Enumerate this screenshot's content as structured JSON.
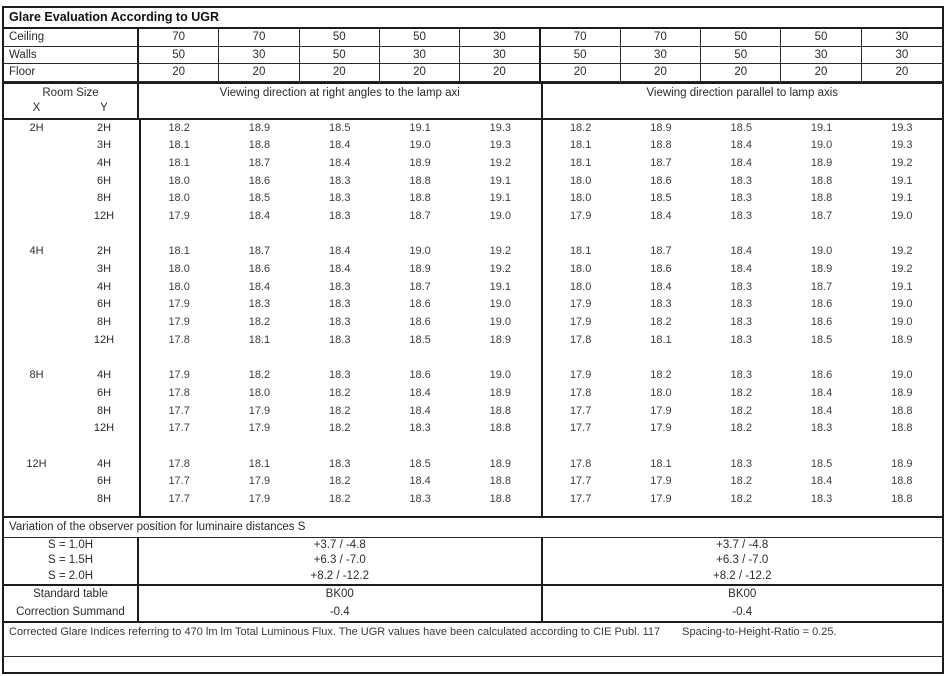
{
  "title": "Glare Evaluation According to UGR",
  "surface_rows": [
    {
      "label": "Ceiling",
      "v": [
        "70",
        "70",
        "50",
        "50",
        "30",
        "70",
        "70",
        "50",
        "50",
        "30"
      ]
    },
    {
      "label": "Walls",
      "v": [
        "50",
        "30",
        "50",
        "30",
        "30",
        "50",
        "30",
        "50",
        "30",
        "30"
      ]
    },
    {
      "label": "Floor",
      "v": [
        "20",
        "20",
        "20",
        "20",
        "20",
        "20",
        "20",
        "20",
        "20",
        "20"
      ]
    }
  ],
  "room_size": {
    "title": "Room Size",
    "x": "X",
    "y": "Y"
  },
  "viewing": {
    "left": "Viewing direction at right angles to the lamp axi",
    "right": "Viewing direction parallel to lamp axis"
  },
  "ugr_rows": [
    {
      "x": "2H",
      "y": "2H",
      "v": [
        "18.2",
        "18.9",
        "18.5",
        "19.1",
        "19.3",
        "18.2",
        "18.9",
        "18.5",
        "19.1",
        "19.3"
      ]
    },
    {
      "x": "",
      "y": "3H",
      "v": [
        "18.1",
        "18.8",
        "18.4",
        "19.0",
        "19.3",
        "18.1",
        "18.8",
        "18.4",
        "19.0",
        "19.3"
      ]
    },
    {
      "x": "",
      "y": "4H",
      "v": [
        "18.1",
        "18.7",
        "18.4",
        "18.9",
        "19.2",
        "18.1",
        "18.7",
        "18.4",
        "18.9",
        "19.2"
      ]
    },
    {
      "x": "",
      "y": "6H",
      "v": [
        "18.0",
        "18.6",
        "18.3",
        "18.8",
        "19.1",
        "18.0",
        "18.6",
        "18.3",
        "18.8",
        "19.1"
      ]
    },
    {
      "x": "",
      "y": "8H",
      "v": [
        "18.0",
        "18.5",
        "18.3",
        "18.8",
        "19.1",
        "18.0",
        "18.5",
        "18.3",
        "18.8",
        "19.1"
      ]
    },
    {
      "x": "",
      "y": "12H",
      "v": [
        "17.9",
        "18.4",
        "18.3",
        "18.7",
        "19.0",
        "17.9",
        "18.4",
        "18.3",
        "18.7",
        "19.0"
      ]
    },
    {
      "x": "",
      "y": "",
      "v": [
        "",
        "",
        "",
        "",
        "",
        "",
        "",
        "",
        "",
        ""
      ]
    },
    {
      "x": "4H",
      "y": "2H",
      "v": [
        "18.1",
        "18.7",
        "18.4",
        "19.0",
        "19.2",
        "18.1",
        "18.7",
        "18.4",
        "19.0",
        "19.2"
      ]
    },
    {
      "x": "",
      "y": "3H",
      "v": [
        "18.0",
        "18.6",
        "18.4",
        "18.9",
        "19.2",
        "18.0",
        "18.6",
        "18.4",
        "18.9",
        "19.2"
      ]
    },
    {
      "x": "",
      "y": "4H",
      "v": [
        "18.0",
        "18.4",
        "18.3",
        "18.7",
        "19.1",
        "18.0",
        "18.4",
        "18.3",
        "18.7",
        "19.1"
      ]
    },
    {
      "x": "",
      "y": "6H",
      "v": [
        "17.9",
        "18.3",
        "18.3",
        "18.6",
        "19.0",
        "17.9",
        "18.3",
        "18.3",
        "18.6",
        "19.0"
      ]
    },
    {
      "x": "",
      "y": "8H",
      "v": [
        "17.9",
        "18.2",
        "18.3",
        "18.6",
        "19.0",
        "17.9",
        "18.2",
        "18.3",
        "18.6",
        "19.0"
      ]
    },
    {
      "x": "",
      "y": "12H",
      "v": [
        "17.8",
        "18.1",
        "18.3",
        "18.5",
        "18.9",
        "17.8",
        "18.1",
        "18.3",
        "18.5",
        "18.9"
      ]
    },
    {
      "x": "",
      "y": "",
      "v": [
        "",
        "",
        "",
        "",
        "",
        "",
        "",
        "",
        "",
        ""
      ]
    },
    {
      "x": "8H",
      "y": "4H",
      "v": [
        "17.9",
        "18.2",
        "18.3",
        "18.6",
        "19.0",
        "17.9",
        "18.2",
        "18.3",
        "18.6",
        "19.0"
      ]
    },
    {
      "x": "",
      "y": "6H",
      "v": [
        "17.8",
        "18.0",
        "18.2",
        "18.4",
        "18.9",
        "17.8",
        "18.0",
        "18.2",
        "18.4",
        "18.9"
      ]
    },
    {
      "x": "",
      "y": "8H",
      "v": [
        "17.7",
        "17.9",
        "18.2",
        "18.4",
        "18.8",
        "17.7",
        "17.9",
        "18.2",
        "18.4",
        "18.8"
      ]
    },
    {
      "x": "",
      "y": "12H",
      "v": [
        "17.7",
        "17.9",
        "18.2",
        "18.3",
        "18.8",
        "17.7",
        "17.9",
        "18.2",
        "18.3",
        "18.8"
      ]
    },
    {
      "x": "",
      "y": "",
      "v": [
        "",
        "",
        "",
        "",
        "",
        "",
        "",
        "",
        "",
        ""
      ]
    },
    {
      "x": "12H",
      "y": "4H",
      "v": [
        "17.8",
        "18.1",
        "18.3",
        "18.5",
        "18.9",
        "17.8",
        "18.1",
        "18.3",
        "18.5",
        "18.9"
      ]
    },
    {
      "x": "",
      "y": "6H",
      "v": [
        "17.7",
        "17.9",
        "18.2",
        "18.4",
        "18.8",
        "17.7",
        "17.9",
        "18.2",
        "18.4",
        "18.8"
      ]
    },
    {
      "x": "",
      "y": "8H",
      "v": [
        "17.7",
        "17.9",
        "18.2",
        "18.3",
        "18.8",
        "17.7",
        "17.9",
        "18.2",
        "18.3",
        "18.8"
      ]
    }
  ],
  "variation": {
    "header": "Variation of the observer position for luminaire distances S",
    "rows": [
      {
        "label": "S = 1.0H",
        "left": "+3.7 / -4.8",
        "right": "+3.7 / -4.8"
      },
      {
        "label": "S = 1.5H",
        "left": "+6.3 / -7.0",
        "right": "+6.3 / -7.0"
      },
      {
        "label": "S = 2.0H",
        "left": "+8.2 / -12.2",
        "right": "+8.2 / -12.2"
      }
    ]
  },
  "standard": {
    "rows": [
      {
        "label": "Standard table",
        "left": "BK00",
        "right": "BK00"
      },
      {
        "label": "Correction Summand",
        "left": "-0.4",
        "right": "-0.4"
      }
    ]
  },
  "footer": {
    "note": "Corrected Glare Indices referring to 470 lm lm Total Luminous Flux. The UGR values have been calculated according to CIE Publ. 117",
    "ratio": "Spacing-to-Height-Ratio = 0.25."
  },
  "colors": {
    "border": "#1c1c1c",
    "text": "#2b2b2b",
    "value_text": "#3d3d3d",
    "background": "#ffffff"
  }
}
